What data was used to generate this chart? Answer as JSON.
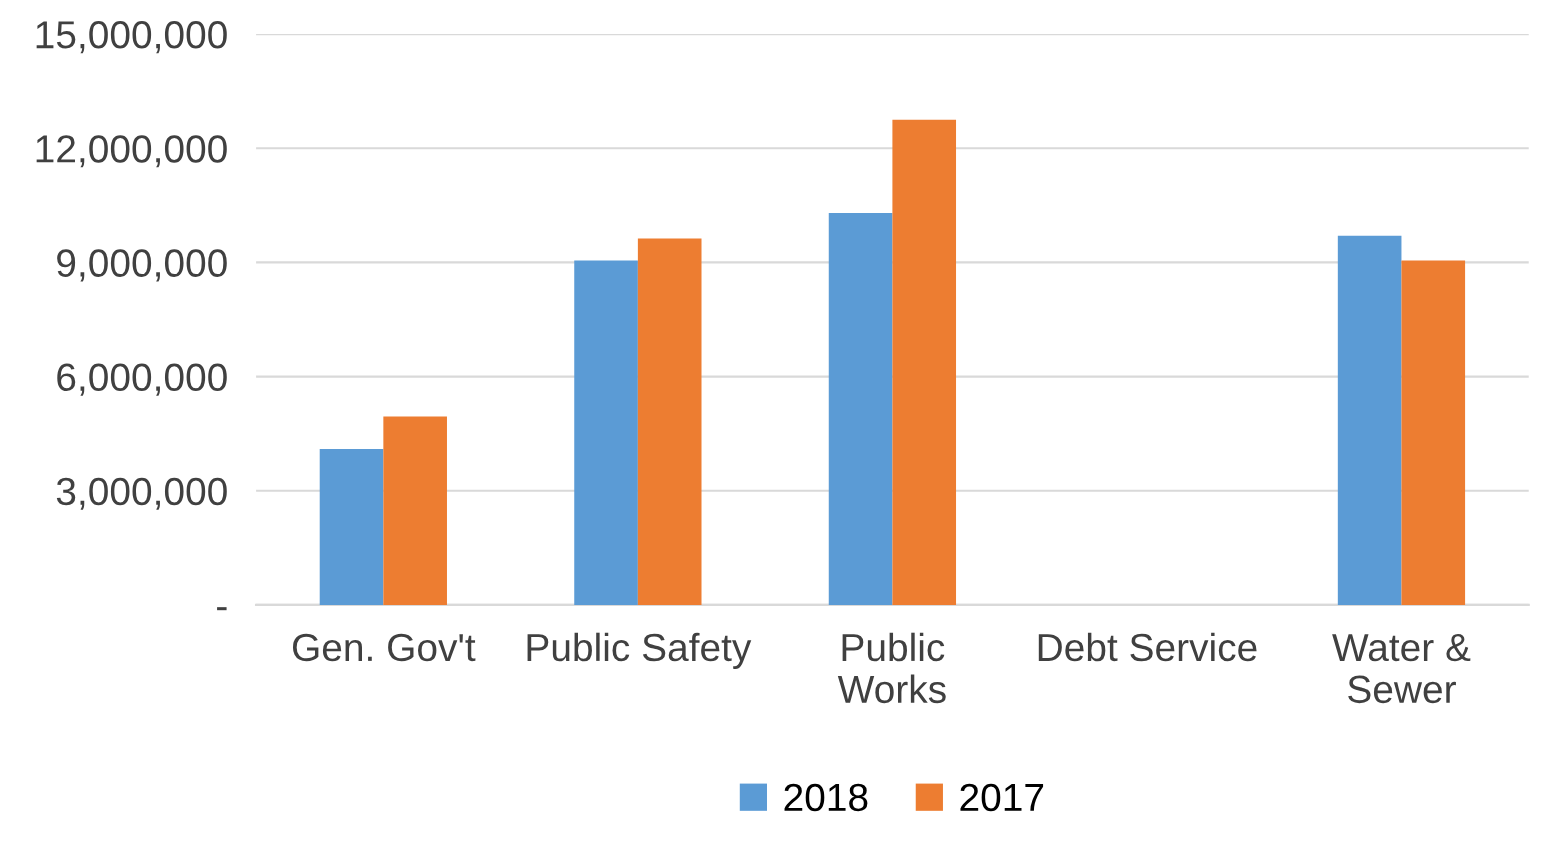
{
  "chart_data": {
    "type": "bar",
    "categories": [
      "Gen. Gov't",
      "Public Safety",
      "Public\nWorks",
      "Debt Service",
      "Water &\nSewer"
    ],
    "series": [
      {
        "name": "2018",
        "color": "#5b9bd5",
        "values": [
          4100000,
          9050000,
          10300000,
          0,
          9700000
        ]
      },
      {
        "name": "2017",
        "color": "#ed7d31",
        "values": [
          4950000,
          9630000,
          12750000,
          0,
          9050000
        ]
      }
    ],
    "ylim": [
      0,
      15000000
    ],
    "yticks": [
      {
        "value": 0,
        "label": "-"
      },
      {
        "value": 3000000,
        "label": "3,000,000"
      },
      {
        "value": 6000000,
        "label": "6,000,000"
      },
      {
        "value": 9000000,
        "label": "9,000,000"
      },
      {
        "value": 12000000,
        "label": "12,000,000"
      },
      {
        "value": 15000000,
        "label": "15,000,000"
      }
    ],
    "grid": "y",
    "legend": "bottom"
  }
}
